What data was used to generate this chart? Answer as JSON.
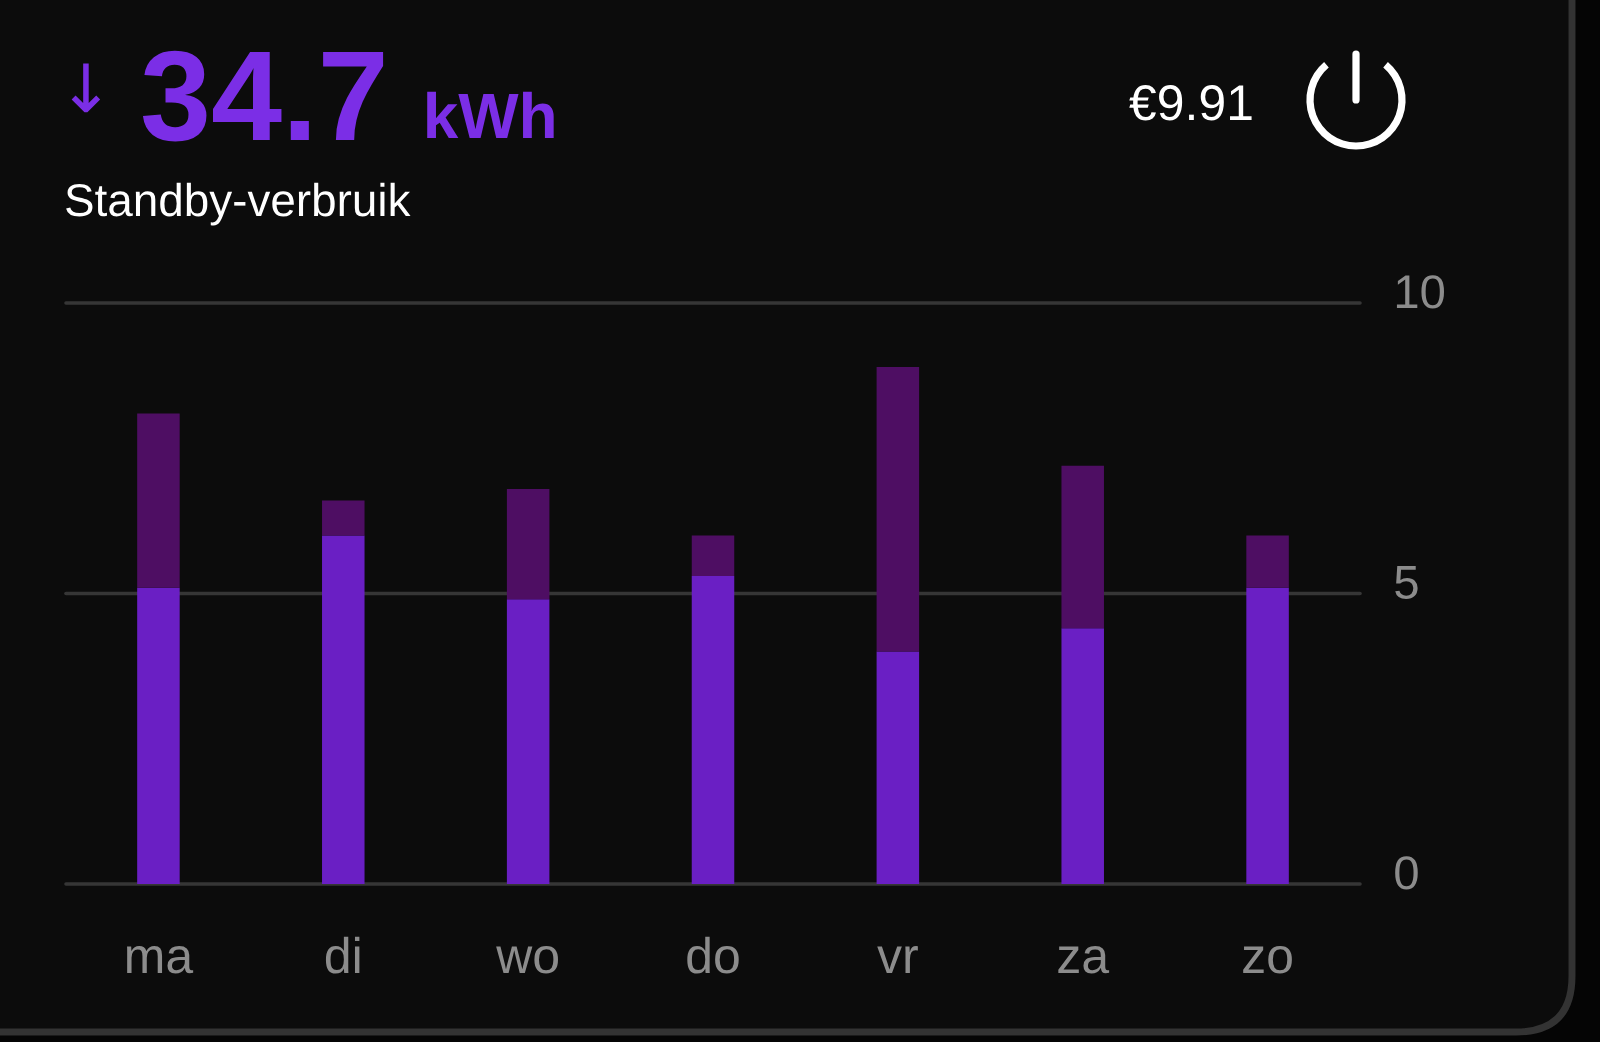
{
  "chart_data": {
    "type": "bar",
    "title": "↓ 34.7 kWh",
    "subtitle": "Standby-verbruik",
    "annotations": [
      "€9.91"
    ],
    "categories": [
      "ma",
      "di",
      "wo",
      "do",
      "vr",
      "za",
      "zo"
    ],
    "stacked": true,
    "series": [
      {
        "color": "#6a1fc4",
        "values": [
          5.1,
          6.0,
          4.9,
          5.3,
          4.0,
          4.4,
          5.1
        ]
      },
      {
        "color": "#4e0e63",
        "values": [
          3.0,
          0.6,
          1.9,
          0.7,
          4.9,
          2.8,
          0.9
        ]
      }
    ],
    "ylim": [
      0,
      10
    ],
    "yticks": [
      0,
      5,
      10
    ],
    "grid": "y"
  }
}
